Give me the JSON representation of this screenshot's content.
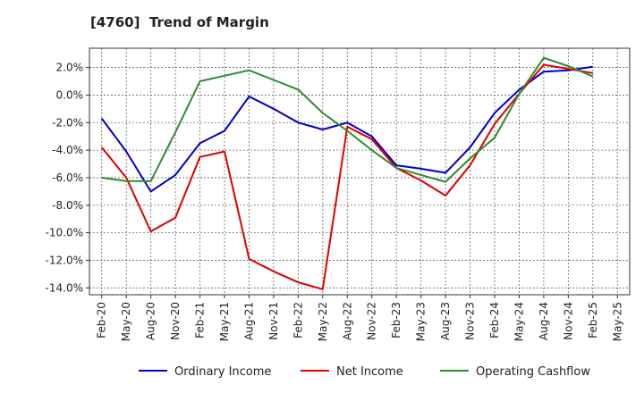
{
  "chart_data": {
    "type": "line",
    "title": "[4760]  Trend of Margin",
    "xlabel": "",
    "ylabel": "",
    "x": [
      "Feb-20",
      "May-20",
      "Aug-20",
      "Nov-20",
      "Feb-21",
      "May-21",
      "Aug-21",
      "Nov-21",
      "Feb-22",
      "May-22",
      "Aug-22",
      "Nov-22",
      "Feb-23",
      "May-23",
      "Aug-23",
      "Nov-23",
      "Feb-24",
      "May-24",
      "Aug-24",
      "Nov-24",
      "Feb-25"
    ],
    "x_ticks": [
      "Feb-20",
      "May-20",
      "Aug-20",
      "Nov-20",
      "Feb-21",
      "May-21",
      "Aug-21",
      "Nov-21",
      "Feb-22",
      "May-22",
      "Aug-22",
      "Nov-22",
      "Feb-23",
      "May-23",
      "Aug-23",
      "Nov-23",
      "Feb-24",
      "May-24",
      "Aug-24",
      "Nov-24",
      "Feb-25",
      "May-25"
    ],
    "y_ticks": [
      2.0,
      0.0,
      -2.0,
      -4.0,
      -6.0,
      -8.0,
      -10.0,
      -12.0,
      -14.0
    ],
    "ylim": [
      -14.5,
      3.4
    ],
    "grid": true,
    "legend_position": "bottom",
    "series": [
      {
        "name": "Ordinary Income",
        "color": "#0000cc",
        "values": [
          -1.7,
          -4.1,
          -7.0,
          -5.8,
          -3.5,
          -2.6,
          -0.1,
          -1.0,
          -2.0,
          -2.5,
          -2.0,
          -3.0,
          -5.1,
          -5.35,
          -5.65,
          -3.8,
          -1.3,
          0.4,
          1.7,
          1.8,
          2.05
        ]
      },
      {
        "name": "Net Income",
        "color": "#dd0000",
        "values": [
          -3.8,
          -6.0,
          -9.9,
          -8.9,
          -4.5,
          -4.1,
          -11.9,
          -12.8,
          -13.6,
          -14.1,
          -2.3,
          -3.2,
          -5.3,
          -6.2,
          -7.3,
          -5.1,
          -2.1,
          0.1,
          2.2,
          1.9,
          1.6
        ]
      },
      {
        "name": "Operating Cashflow",
        "color": "#2e8b2e",
        "values": [
          -6.0,
          -6.25,
          -6.25,
          -2.7,
          1.0,
          1.4,
          1.8,
          1.1,
          0.4,
          -1.3,
          -2.6,
          -4.0,
          -5.3,
          -5.8,
          -6.3,
          -4.6,
          -3.1,
          0.1,
          2.7,
          2.1,
          1.35
        ]
      }
    ]
  }
}
